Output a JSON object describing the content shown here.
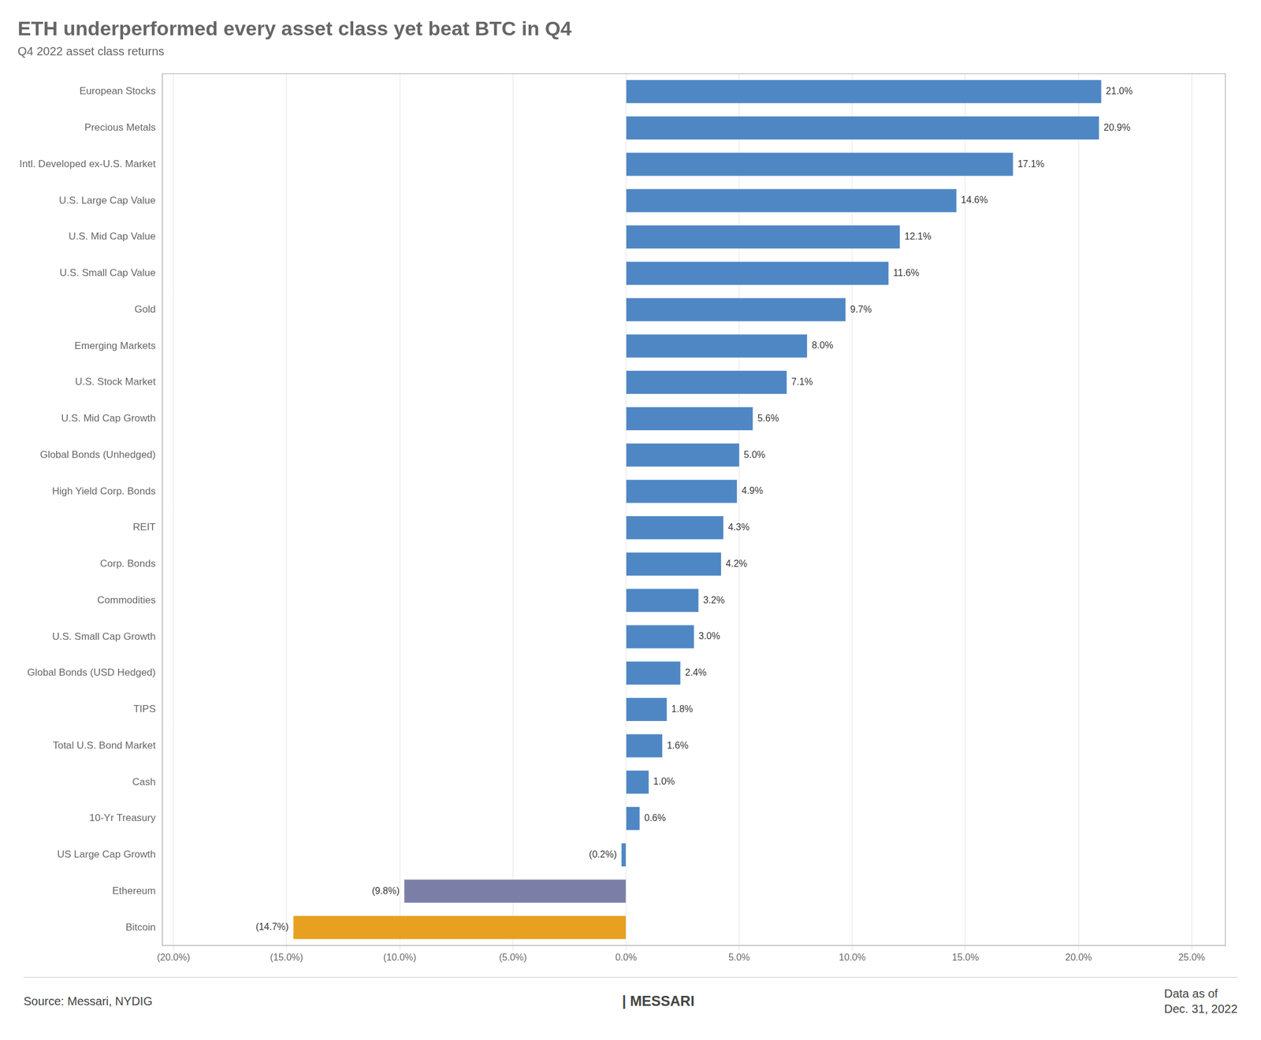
{
  "chart_data": {
    "type": "bar",
    "orientation": "horizontal",
    "title": "ETH underperformed every asset class yet beat BTC in Q4",
    "subtitle": "Q4 2022 asset class returns",
    "annotations": [
      "Source: Messari, NYDIG",
      "| MESSARI",
      "Data as of",
      "Dec. 31, 2022"
    ],
    "categories": [
      "European Stocks",
      "Precious Metals",
      "Intl. Developed ex-U.S. Market",
      "U.S. Large Cap Value",
      "U.S. Mid Cap Value",
      "U.S. Small Cap Value",
      "Gold",
      "Emerging Markets",
      "U.S. Stock Market",
      "U.S. Mid Cap Growth",
      "Global Bonds (Unhedged)",
      "High Yield Corp. Bonds",
      "REIT",
      "Corp. Bonds",
      "Commodities",
      "U.S. Small Cap Growth",
      "Global Bonds (USD Hedged)",
      "TIPS",
      "Total U.S. Bond Market",
      "Cash",
      "10-Yr Treasury",
      "US Large Cap Growth",
      "Ethereum",
      "Bitcoin"
    ],
    "values": [
      21.0,
      20.9,
      17.1,
      14.6,
      12.1,
      11.6,
      9.7,
      8.0,
      7.1,
      5.6,
      5.0,
      4.9,
      4.3,
      4.2,
      3.2,
      3.0,
      2.4,
      1.8,
      1.6,
      1.0,
      0.6,
      -0.2,
      -9.8,
      -14.7
    ],
    "value_labels": [
      "21.0%",
      "20.9%",
      "17.1%",
      "14.6%",
      "12.1%",
      "11.6%",
      "9.7%",
      "8.0%",
      "7.1%",
      "5.6%",
      "5.0%",
      "4.9%",
      "4.3%",
      "4.2%",
      "3.2%",
      "3.0%",
      "2.4%",
      "1.8%",
      "1.6%",
      "1.0%",
      "0.6%",
      "(0.2%)",
      "(9.8%)",
      "(14.7%)"
    ],
    "data_labels": true,
    "colors": [
      "#4f87c5",
      "#4f87c5",
      "#4f87c5",
      "#4f87c5",
      "#4f87c5",
      "#4f87c5",
      "#4f87c5",
      "#4f87c5",
      "#4f87c5",
      "#4f87c5",
      "#4f87c5",
      "#4f87c5",
      "#4f87c5",
      "#4f87c5",
      "#4f87c5",
      "#4f87c5",
      "#4f87c5",
      "#4f87c5",
      "#4f87c5",
      "#4f87c5",
      "#4f87c5",
      "#4f87c5",
      "#7b7fa8",
      "#e8a020"
    ],
    "xlim": [
      -20.5,
      26.5
    ],
    "xticks": [
      {
        "value": -20.0,
        "label": "(20.0%)"
      },
      {
        "value": -15.0,
        "label": "(15.0%)"
      },
      {
        "value": -10.0,
        "label": "(10.0%)"
      },
      {
        "value": -5.0,
        "label": "(5.0%)"
      },
      {
        "value": 0.0,
        "label": "0.0%"
      },
      {
        "value": 5.0,
        "label": "5.0%"
      },
      {
        "value": 10.0,
        "label": "10.0%"
      },
      {
        "value": 15.0,
        "label": "15.0%"
      },
      {
        "value": 20.0,
        "label": "20.0%"
      },
      {
        "value": 25.0,
        "label": "25.0%"
      }
    ],
    "grid": true
  }
}
